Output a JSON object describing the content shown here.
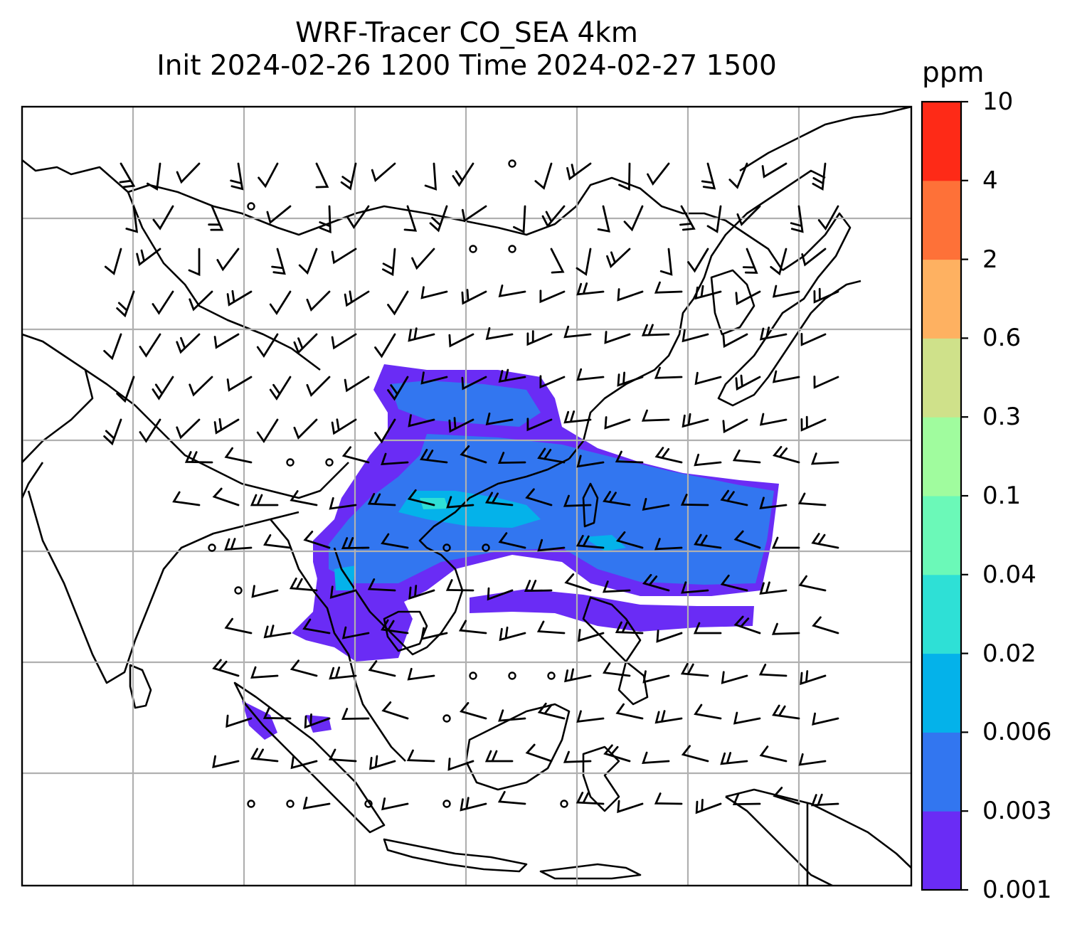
{
  "title": {
    "line1": "WRF-Tracer CO_SEA 4km",
    "line2": "Init 2024-02-26 1200 Time 2024-02-27 1500"
  },
  "colorbar": {
    "unit": "ppm",
    "levels": [
      "0.001",
      "0.003",
      "0.006",
      "0.02",
      "0.04",
      "0.1",
      "0.3",
      "0.6",
      "2",
      "4",
      "10"
    ],
    "colors": [
      "#6a2cf5",
      "#3276f0",
      "#04b2ea",
      "#2ee0d6",
      "#6bf9b8",
      "#a0fc9e",
      "#cfe18a",
      "#feb161",
      "#fe7138",
      "#fe2a17"
    ]
  },
  "map": {
    "gridlines": true,
    "grid_color": "#b0b0b0",
    "coastline_color": "#000000",
    "barb_color": "#000000"
  }
}
